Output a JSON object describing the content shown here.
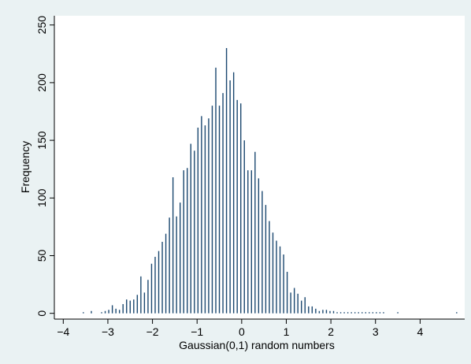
{
  "chart_data": {
    "type": "bar",
    "title": "",
    "xlabel": "Gaussian(0,1) random numbers",
    "ylabel": "Frequency",
    "xlim": [
      -4.2,
      5.0
    ],
    "ylim": [
      -5,
      258
    ],
    "xticks": [
      -4,
      -3,
      -2,
      -1,
      0,
      1,
      2,
      3,
      4
    ],
    "xtick_labels": [
      "−4",
      "−3",
      "−2",
      "−1",
      "0",
      "1",
      "2",
      "3",
      "4"
    ],
    "yticks": [
      0,
      50,
      100,
      150,
      200,
      250
    ],
    "ytick_labels": [
      "0",
      "50",
      "100",
      "150",
      "200",
      "250"
    ],
    "grid": false,
    "legend": "none",
    "colors": {
      "plot_background": "#ffffff",
      "outer_background": "#eaf2f3",
      "bar": "#1a476f"
    },
    "x": [
      -3.55,
      -3.37,
      -3.14,
      -3.06,
      -2.98,
      -2.9,
      -2.82,
      -2.74,
      -2.66,
      -2.58,
      -2.5,
      -2.42,
      -2.34,
      -2.26,
      -2.18,
      -2.1,
      -2.02,
      -1.94,
      -1.86,
      -1.78,
      -1.7,
      -1.62,
      -1.54,
      -1.46,
      -1.38,
      -1.3,
      -1.22,
      -1.14,
      -1.06,
      -0.98,
      -0.9,
      -0.82,
      -0.74,
      -0.66,
      -0.58,
      -0.5,
      -0.42,
      -0.34,
      -0.26,
      -0.18,
      -0.1,
      -0.02,
      0.06,
      0.14,
      0.22,
      0.3,
      0.38,
      0.46,
      0.54,
      0.62,
      0.7,
      0.78,
      0.86,
      0.94,
      1.02,
      1.1,
      1.18,
      1.26,
      1.34,
      1.42,
      1.5,
      1.58,
      1.66,
      1.74,
      1.82,
      1.9,
      1.98,
      2.06,
      2.14,
      2.22,
      2.3,
      2.38,
      2.46,
      2.54,
      2.62,
      2.7,
      2.78,
      2.86,
      2.94,
      3.02,
      3.1,
      3.18,
      3.5,
      4.82
    ],
    "values": [
      1,
      2,
      1,
      2,
      3,
      7,
      4,
      3,
      8,
      12,
      11,
      12,
      16,
      32,
      18,
      29,
      43,
      49,
      54,
      62,
      69,
      83,
      118,
      84,
      96,
      124,
      126,
      147,
      141,
      161,
      171,
      163,
      169,
      180,
      213,
      180,
      191,
      230,
      202,
      209,
      185,
      182,
      150,
      124,
      124,
      140,
      117,
      106,
      94,
      80,
      70,
      63,
      58,
      51,
      36,
      18,
      22,
      17,
      11,
      14,
      6,
      6,
      4,
      2,
      3,
      3,
      2,
      2,
      1,
      1,
      1,
      1,
      1,
      1,
      1,
      1,
      1,
      1,
      1,
      1,
      1,
      1,
      1,
      1
    ]
  }
}
